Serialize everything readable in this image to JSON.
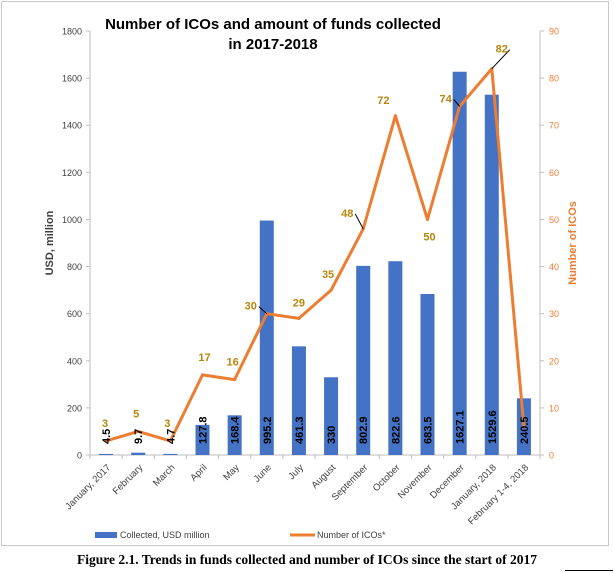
{
  "chart_data": {
    "type": "bar+line",
    "title_lines": [
      "Number of ICOs and amount of funds collected",
      "in 2017-2018"
    ],
    "categories": [
      "January, 2017",
      "February",
      "March",
      "April",
      "May",
      "June",
      "July",
      "August",
      "September",
      "October",
      "November",
      "December",
      "January, 2018",
      "February 1-4, 2018"
    ],
    "series": [
      {
        "name": "Collected, USD million",
        "type": "bar",
        "axis": "left",
        "color": "#4472C4",
        "values": [
          4.5,
          9.7,
          4.7,
          127.8,
          168.4,
          995.2,
          461.3,
          330,
          802.9,
          822.6,
          683.5,
          1627.1,
          1529.6,
          240.5
        ],
        "labels": [
          "4.5",
          "9.7",
          "4.7",
          "127.8",
          "168.4",
          "995.2",
          "461.3",
          "330",
          "802.9",
          "822.6",
          "683.5",
          "1627.1",
          "1529.6",
          "240.5"
        ]
      },
      {
        "name": "Number of ICOs*",
        "type": "line",
        "axis": "right",
        "color": "#ED7D31",
        "values": [
          3,
          5,
          3,
          17,
          16,
          30,
          29,
          35,
          48,
          72,
          50,
          74,
          82,
          6
        ],
        "labels": [
          "3",
          "5",
          "3",
          "17",
          "16",
          "30",
          "29",
          "35",
          "48",
          "72",
          "50",
          "74",
          "82",
          ""
        ]
      }
    ],
    "ylabel_left": "USD, million",
    "ylabel_right": "Number of ICOs",
    "ylim_left": [
      0,
      1800
    ],
    "ylim_right": [
      0,
      90
    ],
    "yticks_left": [
      "0",
      "200",
      "400",
      "600",
      "800",
      "1000",
      "1200",
      "1400",
      "1600",
      "1800"
    ],
    "yticks_right": [
      "0",
      "10",
      "20",
      "30",
      "40",
      "50",
      "60",
      "70",
      "80",
      "90"
    ],
    "grid": false,
    "legend_position": "bottom",
    "label_color": "#B8860B"
  },
  "caption": "Figure 2.1. Trends in funds collected and number of ICOs since the start of 2017"
}
